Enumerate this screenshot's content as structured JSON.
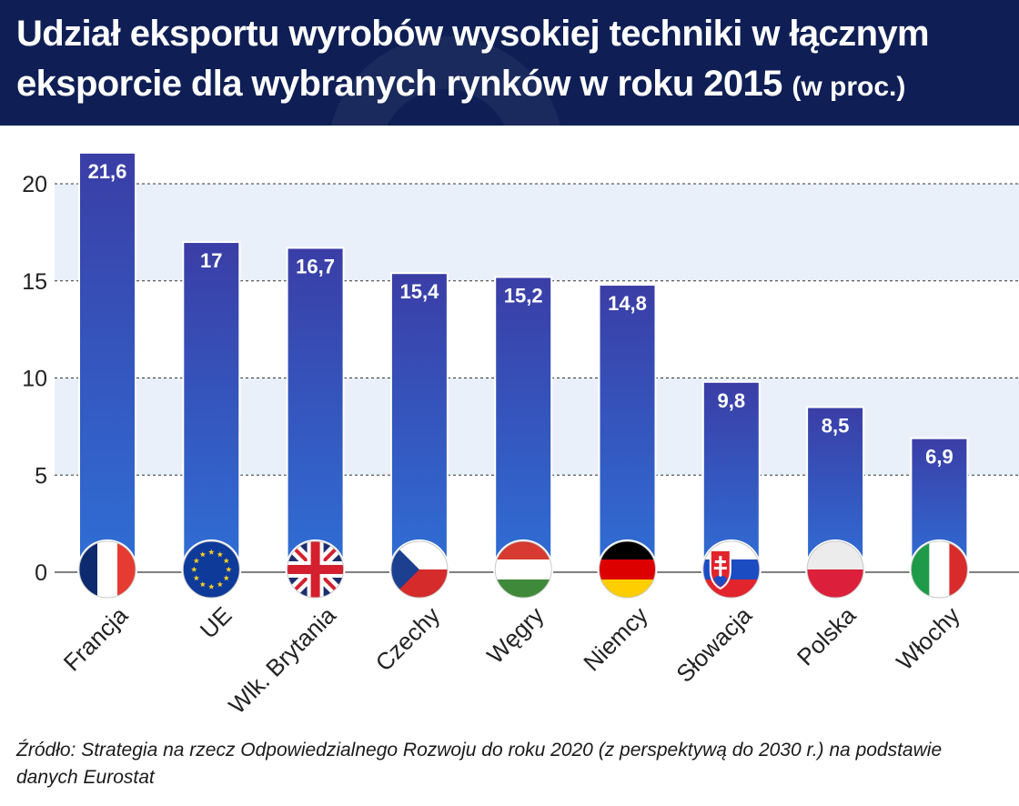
{
  "header": {
    "title_main": "Udział eksportu wyrobów wysokiej techniki w łącznym eksporcie dla wybranych rynków w roku 2015",
    "title_sub": "(w proc.)"
  },
  "footer": {
    "source": "Źródło: Strategia na rzecz Odpowiedzialnego Rozwoju do roku 2020 (z perspektywą do 2030 r.) na podstawie danych Eurostat"
  },
  "colors": {
    "header_bg": "#0f1f55",
    "bar_top": "#3a3ea6",
    "bar_bottom": "#2f6fd6",
    "band": "#e9f0fa"
  },
  "chart_data": {
    "type": "bar",
    "categories": [
      "Francja",
      "UE",
      "Wlk. Brytania",
      "Czechy",
      "Węgry",
      "Niemcy",
      "Słowacja",
      "Polska",
      "Włochy"
    ],
    "values": [
      21.6,
      17,
      16.7,
      15.4,
      15.2,
      14.8,
      9.8,
      8.5,
      6.9
    ],
    "value_labels": [
      "21,6",
      "17",
      "16,7",
      "15,4",
      "15,2",
      "14,8",
      "9,8",
      "8,5",
      "6,9"
    ],
    "flag_icons": [
      "flag-france-icon",
      "flag-eu-icon",
      "flag-uk-icon",
      "flag-czech-icon",
      "flag-hungary-icon",
      "flag-germany-icon",
      "flag-slovakia-icon",
      "flag-poland-icon",
      "flag-italy-icon"
    ],
    "yticks": [
      0,
      5,
      10,
      15,
      20
    ],
    "ylim": [
      0,
      23
    ],
    "grid": true,
    "title": "",
    "xlabel": "",
    "ylabel": ""
  }
}
